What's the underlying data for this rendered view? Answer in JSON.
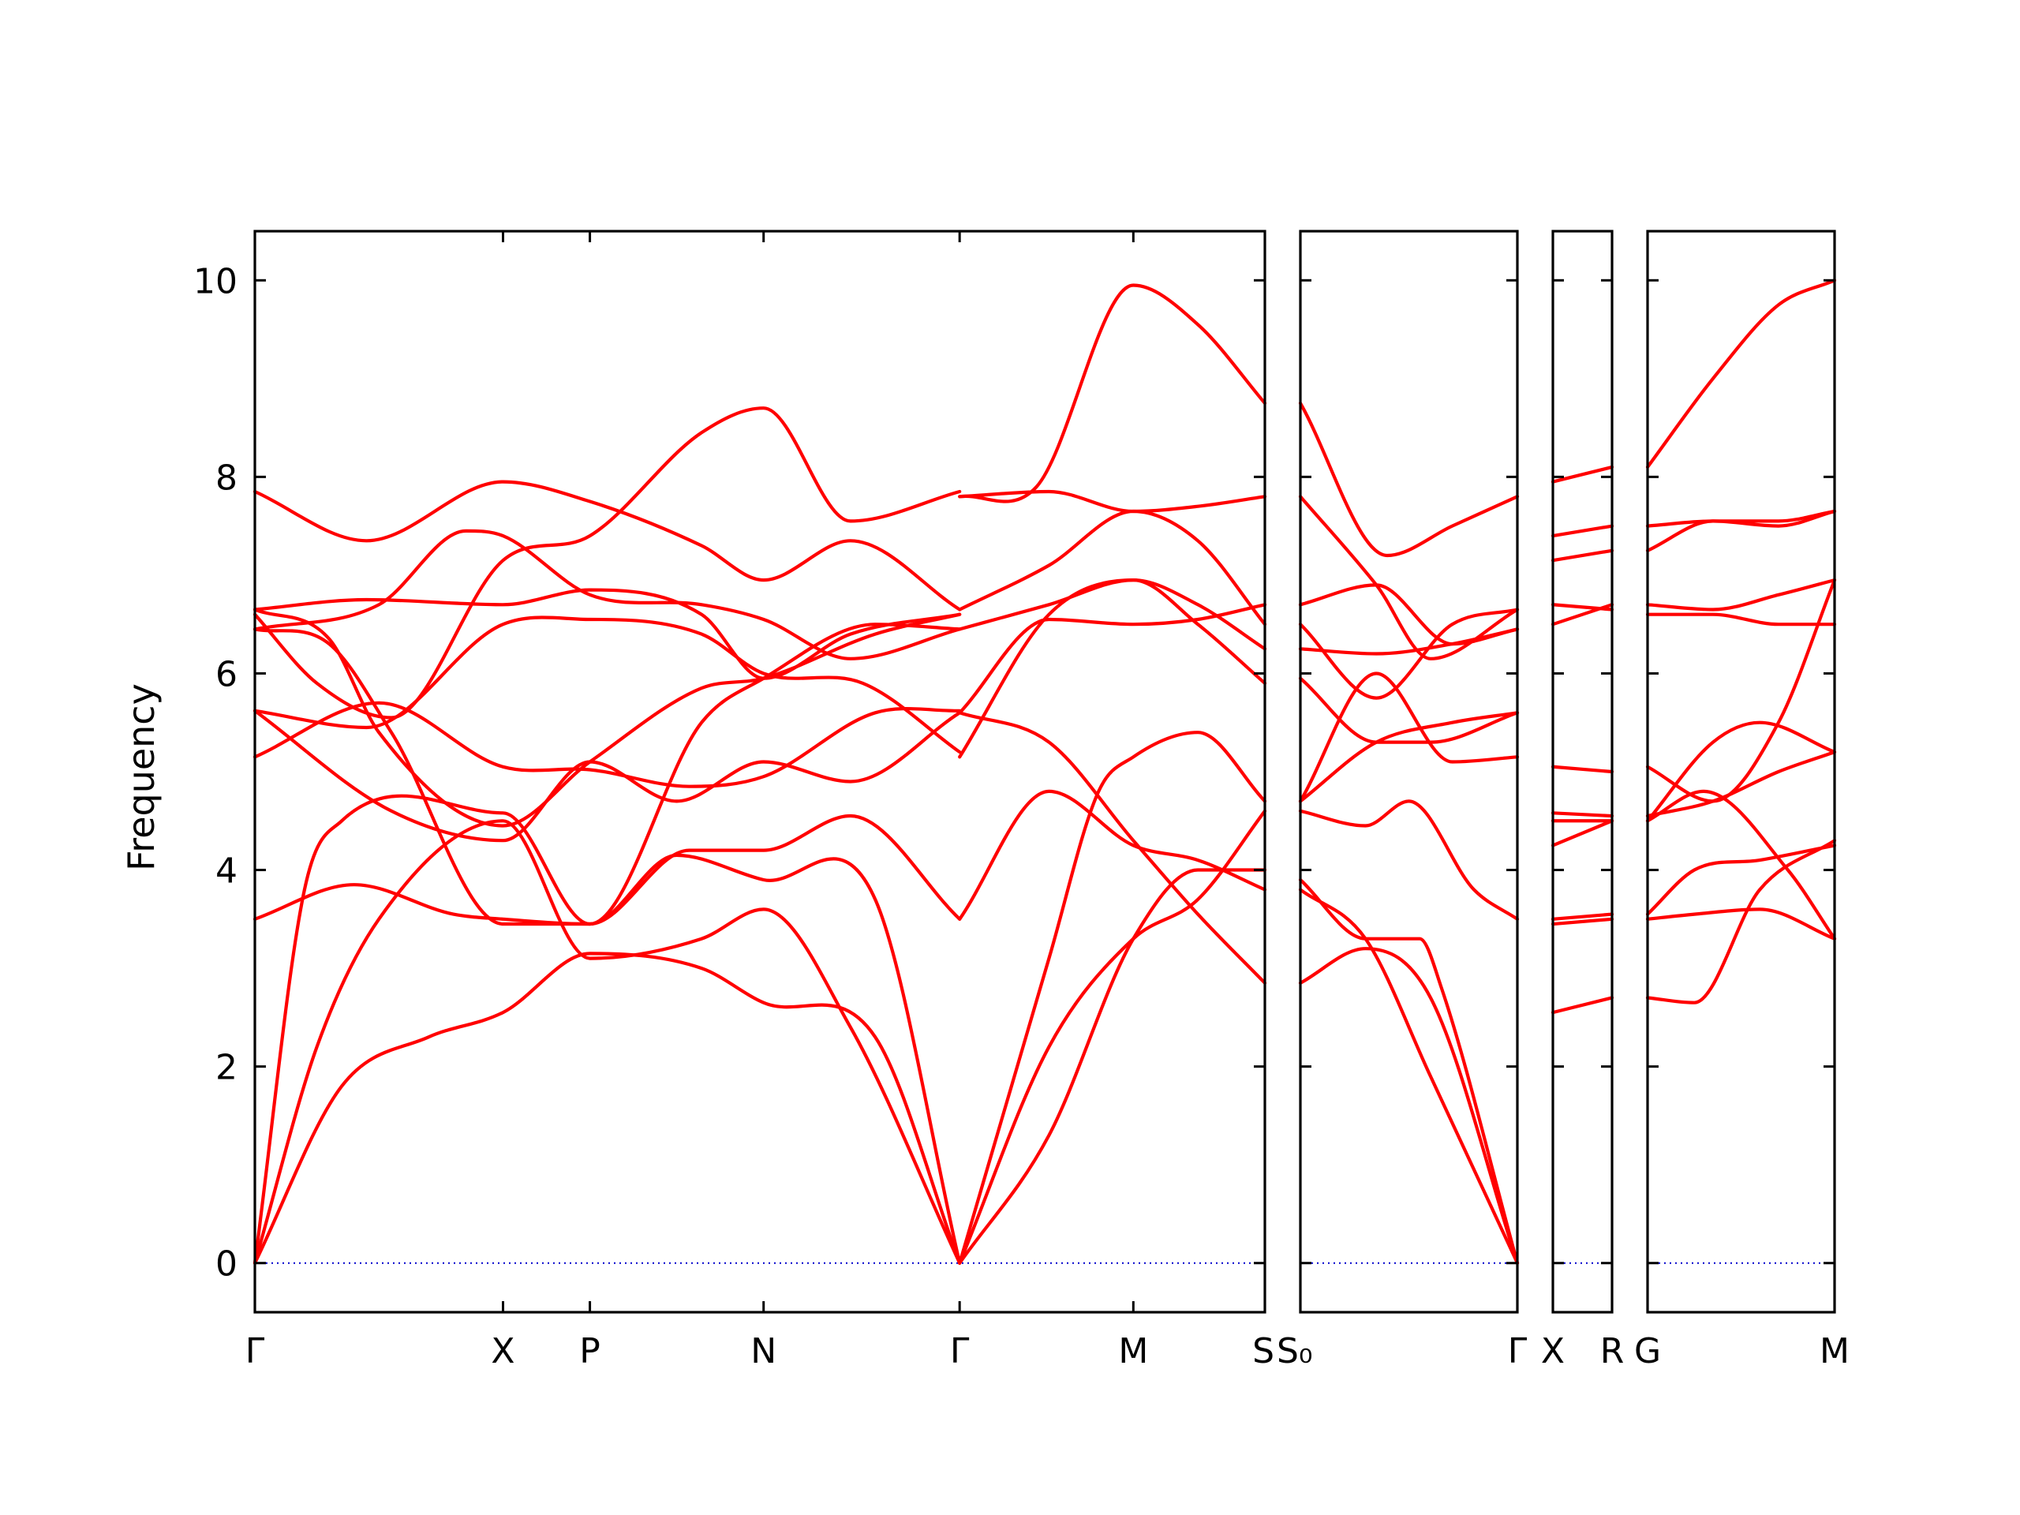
{
  "chart_data": {
    "type": "line",
    "title": "",
    "ylabel": "Frequency",
    "xlabel": "",
    "ylim": [
      -0.5,
      10.5
    ],
    "yticks": [
      0,
      2,
      4,
      6,
      8,
      10
    ],
    "grid": false,
    "colors": {
      "bands": "#ff0000",
      "zero_line": "#0000cc",
      "frame": "#000000"
    },
    "panels": [
      {
        "kpoints": [
          {
            "label": "Γ",
            "x": 0
          },
          {
            "label": "X",
            "x": 1
          },
          {
            "label": "P",
            "x": 1.35
          },
          {
            "label": "N",
            "x": 2.05
          },
          {
            "label": "Γ",
            "x": 2.84
          },
          {
            "label": "M",
            "x": 3.54
          },
          {
            "label": "S",
            "x": 4.07
          }
        ],
        "series": [
          {
            "x": [
              0,
              0.35,
              0.7,
              1.0,
              1.35,
              1.8,
              2.05,
              2.5,
              2.84
            ],
            "values": [
              0,
              1.8,
              2.3,
              2.55,
              3.15,
              3.0,
              2.65,
              2.3,
              0
            ]
          },
          {
            "x": [
              0,
              0.25,
              0.5,
              1.0,
              1.35,
              1.8,
              2.05,
              2.4,
              2.84
            ],
            "values": [
              0,
              2.2,
              3.5,
              4.5,
              3.1,
              3.3,
              3.6,
              2.4,
              0
            ]
          },
          {
            "x": [
              0,
              0.2,
              0.35,
              1.0,
              1.35,
              1.7,
              2.05,
              2.5,
              2.84
            ],
            "values": [
              0,
              3.8,
              4.5,
              4.58,
              3.45,
              4.15,
              3.9,
              3.7,
              0
            ]
          },
          {
            "x": [
              0,
              0.4,
              0.8,
              1.0,
              1.35,
              1.75,
              2.05,
              2.4,
              2.84
            ],
            "values": [
              3.5,
              3.85,
              3.55,
              3.5,
              3.45,
              4.2,
              4.2,
              4.55,
              3.5
            ]
          },
          {
            "x": [
              0,
              0.55,
              1.0,
              1.35,
              1.7,
              2.05,
              2.4,
              2.84
            ],
            "values": [
              5.62,
              4.6,
              4.3,
              5.1,
              4.7,
              5.1,
              4.9,
              5.6
            ]
          },
          {
            "x": [
              0,
              0.5,
              1.0,
              1.35,
              1.75,
              2.05,
              2.5,
              2.84
            ],
            "values": [
              5.15,
              5.7,
              5.05,
              5.02,
              4.85,
              4.95,
              5.6,
              5.62
            ]
          },
          {
            "x": [
              0,
              0.3,
              0.55,
              1.0,
              1.35,
              1.8,
              2.05,
              2.5,
              2.84
            ],
            "values": [
              6.45,
              6.3,
              5.4,
              3.45,
              3.45,
              5.5,
              5.95,
              6.5,
              6.45
            ]
          },
          {
            "x": [
              0,
              0.3,
              0.5,
              1.0,
              1.35,
              1.8,
              2.05,
              2.5,
              2.84
            ],
            "values": [
              6.65,
              6.35,
              5.4,
              4.45,
              5.1,
              5.85,
              5.95,
              6.4,
              6.6
            ]
          },
          {
            "x": [
              0,
              0.45,
              1.0,
              1.35,
              1.8,
              2.05,
              2.45,
              2.84
            ],
            "values": [
              5.62,
              5.45,
              6.5,
              6.55,
              6.4,
              6.0,
              5.9,
              5.2
            ]
          },
          {
            "x": [
              0,
              0.45,
              1.0,
              1.35,
              1.8,
              2.05,
              2.4,
              2.84
            ],
            "values": [
              6.65,
              6.75,
              6.7,
              6.85,
              6.6,
              5.95,
              6.4,
              6.6
            ]
          },
          {
            "x": [
              0,
              0.5,
              0.85,
              1.0,
              1.35,
              1.8,
              2.05,
              2.4,
              2.84
            ],
            "values": [
              6.45,
              6.7,
              7.45,
              7.4,
              6.8,
              6.7,
              6.55,
              6.15,
              6.45
            ]
          },
          {
            "x": [
              0,
              0.25,
              0.55,
              1.0,
              1.35,
              1.8,
              2.05,
              2.4,
              2.84
            ],
            "values": [
              6.6,
              5.9,
              5.55,
              7.15,
              7.4,
              8.45,
              8.7,
              7.55,
              7.85
            ]
          },
          {
            "x": [
              0,
              0.45,
              1.0,
              1.35,
              1.8,
              2.05,
              2.4,
              2.84
            ],
            "values": [
              7.85,
              7.35,
              7.95,
              7.75,
              7.3,
              6.95,
              7.35,
              6.65
            ]
          },
          {
            "x": [
              2.84,
              3.2,
              3.54,
              3.8,
              4.07
            ],
            "values": [
              0,
              2.2,
              3.3,
              3.7,
              4.6
            ]
          },
          {
            "x": [
              2.84,
              3.2,
              3.4,
              3.54,
              3.8,
              4.07
            ],
            "values": [
              0,
              3.1,
              4.8,
              5.15,
              5.4,
              4.7
            ]
          },
          {
            "x": [
              2.84,
              3.2,
              3.54,
              3.8,
              4.07
            ],
            "values": [
              3.5,
              4.8,
              4.25,
              4.1,
              3.8
            ]
          },
          {
            "x": [
              2.84,
              3.2,
              3.54,
              3.8,
              4.07
            ],
            "values": [
              5.6,
              5.3,
              4.3,
              3.55,
              2.85
            ]
          },
          {
            "x": [
              2.84,
              3.2,
              3.54,
              3.8,
              4.07
            ],
            "values": [
              5.15,
              6.6,
              6.95,
              6.5,
              5.9
            ]
          },
          {
            "x": [
              2.84,
              3.2,
              3.54,
              3.8,
              4.07
            ],
            "values": [
              5.6,
              6.55,
              6.5,
              6.55,
              6.7
            ]
          },
          {
            "x": [
              2.84,
              3.2,
              3.54,
              3.8,
              4.07
            ],
            "values": [
              6.45,
              6.7,
              6.95,
              6.7,
              6.25
            ]
          },
          {
            "x": [
              2.84,
              3.2,
              3.54,
              3.8,
              4.07
            ],
            "values": [
              6.65,
              7.1,
              7.65,
              7.35,
              6.5
            ]
          },
          {
            "x": [
              2.84,
              3.15,
              3.54,
              3.8,
              4.07
            ],
            "values": [
              7.8,
              7.9,
              9.95,
              9.55,
              8.75
            ]
          },
          {
            "x": [
              2.84,
              3.2,
              3.54,
              3.8,
              4.07
            ],
            "values": [
              7.8,
              7.85,
              7.65,
              7.7,
              7.8
            ]
          },
          {
            "x": [
              2.84,
              3.2,
              3.54,
              3.8,
              4.07
            ],
            "values": [
              0,
              1.3,
              3.3,
              4.0,
              4.0
            ]
          }
        ]
      },
      {
        "kpoints": [
          {
            "label": "S₀",
            "x": 0
          },
          {
            "label": "Γ",
            "x": 1
          }
        ],
        "series": [
          {
            "x": [
              0,
              0.3,
              0.6,
              1
            ],
            "values": [
              2.85,
              3.2,
              2.7,
              0
            ]
          },
          {
            "x": [
              0,
              0.3,
              0.6,
              1
            ],
            "values": [
              3.8,
              3.3,
              1.9,
              0
            ]
          },
          {
            "x": [
              0,
              0.3,
              0.55,
              0.65,
              1
            ],
            "values": [
              3.9,
              3.3,
              3.3,
              2.8,
              0
            ]
          },
          {
            "x": [
              0,
              0.3,
              0.5,
              0.8,
              1
            ],
            "values": [
              4.6,
              4.45,
              4.7,
              3.8,
              3.5
            ]
          },
          {
            "x": [
              0,
              0.35,
              0.7,
              1
            ],
            "values": [
              4.7,
              6.0,
              5.1,
              5.15
            ]
          },
          {
            "x": [
              0,
              0.35,
              0.7,
              1
            ],
            "values": [
              4.7,
              5.3,
              5.5,
              5.6
            ]
          },
          {
            "x": [
              0,
              0.35,
              0.6,
              1
            ],
            "values": [
              5.95,
              5.3,
              5.3,
              5.6
            ]
          },
          {
            "x": [
              0,
              0.35,
              0.7,
              1
            ],
            "values": [
              6.25,
              6.2,
              6.3,
              6.45
            ]
          },
          {
            "x": [
              0,
              0.35,
              0.7,
              1
            ],
            "values": [
              6.5,
              5.75,
              6.5,
              6.65
            ]
          },
          {
            "x": [
              0,
              0.35,
              0.7,
              1
            ],
            "values": [
              6.7,
              6.9,
              6.3,
              6.45
            ]
          },
          {
            "x": [
              0,
              0.35,
              0.6,
              1
            ],
            "values": [
              7.8,
              6.9,
              6.15,
              6.65
            ]
          },
          {
            "x": [
              0,
              0.4,
              0.7,
              1
            ],
            "values": [
              8.75,
              7.2,
              7.5,
              7.8
            ]
          }
        ]
      },
      {
        "kpoints": [
          {
            "label": "X",
            "x": 0
          },
          {
            "label": "R",
            "x": 1
          }
        ],
        "series": [
          {
            "x": [
              0,
              1
            ],
            "values": [
              2.55,
              2.7
            ]
          },
          {
            "x": [
              0,
              1
            ],
            "values": [
              3.45,
              3.5
            ]
          },
          {
            "x": [
              0,
              1
            ],
            "values": [
              3.5,
              3.55
            ]
          },
          {
            "x": [
              0,
              1
            ],
            "values": [
              4.25,
              4.5
            ]
          },
          {
            "x": [
              0,
              1
            ],
            "values": [
              4.5,
              4.5
            ]
          },
          {
            "x": [
              0,
              1
            ],
            "values": [
              4.58,
              4.55
            ]
          },
          {
            "x": [
              0,
              1
            ],
            "values": [
              5.05,
              5.0
            ]
          },
          {
            "x": [
              0,
              1
            ],
            "values": [
              6.5,
              6.7
            ]
          },
          {
            "x": [
              0,
              1
            ],
            "values": [
              6.7,
              6.65
            ]
          },
          {
            "x": [
              0,
              1
            ],
            "values": [
              7.15,
              7.25
            ]
          },
          {
            "x": [
              0,
              1
            ],
            "values": [
              7.4,
              7.5
            ]
          },
          {
            "x": [
              0,
              1
            ],
            "values": [
              7.95,
              8.1
            ]
          }
        ]
      },
      {
        "kpoints": [
          {
            "label": "G",
            "x": 0
          },
          {
            "label": "M",
            "x": 1
          }
        ],
        "series": [
          {
            "x": [
              0,
              0.25,
              0.6,
              1
            ],
            "values": [
              2.7,
              2.65,
              3.8,
              4.3
            ]
          },
          {
            "x": [
              0,
              0.25,
              0.6,
              1
            ],
            "values": [
              3.5,
              3.55,
              3.6,
              3.3
            ]
          },
          {
            "x": [
              0,
              0.25,
              0.6,
              1
            ],
            "values": [
              3.55,
              4.0,
              4.1,
              4.25
            ]
          },
          {
            "x": [
              0,
              0.3,
              0.75,
              1
            ],
            "values": [
              4.5,
              4.8,
              4.0,
              3.3
            ]
          },
          {
            "x": [
              0,
              0.35,
              0.7,
              1
            ],
            "values": [
              4.55,
              4.7,
              5.0,
              5.2
            ]
          },
          {
            "x": [
              0,
              0.35,
              0.6,
              1
            ],
            "values": [
              4.5,
              5.3,
              5.5,
              5.2
            ]
          },
          {
            "x": [
              0,
              0.35,
              0.7,
              1
            ],
            "values": [
              5.05,
              4.7,
              5.5,
              6.95
            ]
          },
          {
            "x": [
              0,
              0.35,
              0.7,
              1
            ],
            "values": [
              6.6,
              6.6,
              6.5,
              6.5
            ]
          },
          {
            "x": [
              0,
              0.35,
              0.7,
              1
            ],
            "values": [
              6.7,
              6.65,
              6.8,
              6.95
            ]
          },
          {
            "x": [
              0,
              0.35,
              0.7,
              1
            ],
            "values": [
              7.25,
              7.55,
              7.5,
              7.65
            ]
          },
          {
            "x": [
              0,
              0.35,
              0.7,
              1
            ],
            "values": [
              7.5,
              7.55,
              7.55,
              7.65
            ]
          },
          {
            "x": [
              0,
              0.35,
              0.7,
              1
            ],
            "values": [
              8.1,
              9.0,
              9.75,
              10.0
            ]
          }
        ]
      }
    ]
  }
}
